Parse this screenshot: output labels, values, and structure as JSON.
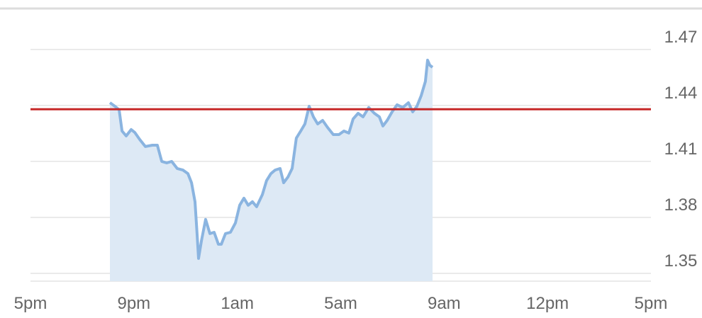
{
  "chart_data": {
    "type": "area",
    "x": [
      0.768,
      0.816,
      0.857,
      0.885,
      0.926,
      0.974,
      1.008,
      1.056,
      1.111,
      1.179,
      1.227,
      1.269,
      1.317,
      1.365,
      1.419,
      1.474,
      1.522,
      1.557,
      1.591,
      1.611,
      1.625,
      1.653,
      1.694,
      1.735,
      1.776,
      1.817,
      1.845,
      1.886,
      1.934,
      1.982,
      2.023,
      2.064,
      2.105,
      2.146,
      2.187,
      2.242,
      2.283,
      2.325,
      2.366,
      2.414,
      2.448,
      2.489,
      2.53,
      2.571,
      2.613,
      2.654,
      2.695,
      2.736,
      2.777,
      2.825,
      2.873,
      2.928,
      2.983,
      3.031,
      3.079,
      3.12,
      3.168,
      3.216,
      3.271,
      3.326,
      3.374,
      3.408,
      3.449,
      3.497,
      3.545,
      3.6,
      3.655,
      3.696,
      3.737,
      3.778,
      3.819,
      3.84,
      3.861,
      3.888
    ],
    "series": [
      {
        "color": "#8ab4e0",
        "fill": "#dde9f5",
        "values": [
          1.4415,
          1.4396,
          1.4377,
          1.4263,
          1.4237,
          1.4271,
          1.4256,
          1.4218,
          1.418,
          1.4187,
          1.4187,
          1.41,
          1.4092,
          1.41,
          1.4062,
          1.4054,
          1.4035,
          1.3986,
          1.3884,
          1.3713,
          1.358,
          1.3675,
          1.3789,
          1.3713,
          1.372,
          1.3656,
          1.3656,
          1.3713,
          1.372,
          1.377,
          1.3865,
          1.3903,
          1.3865,
          1.3884,
          1.3857,
          1.3922,
          1.3997,
          1.4035,
          1.4054,
          1.4062,
          1.3986,
          1.4016,
          1.4062,
          1.4225,
          1.4263,
          1.4301,
          1.4396,
          1.4339,
          1.4301,
          1.432,
          1.4282,
          1.4244,
          1.4244,
          1.4263,
          1.4252,
          1.4328,
          1.4358,
          1.4339,
          1.4389,
          1.4358,
          1.4339,
          1.429,
          1.432,
          1.4366,
          1.4404,
          1.4389,
          1.4415,
          1.4366,
          1.4396,
          1.4453,
          1.4529,
          1.4643,
          1.4616,
          1.4605
        ]
      }
    ],
    "reference_line": {
      "value": 1.438,
      "color": "#c62828"
    },
    "xlim": [
      0,
      6
    ],
    "xticks": [
      {
        "value": 0,
        "label": "5pm"
      },
      {
        "value": 1,
        "label": "9pm"
      },
      {
        "value": 2,
        "label": "1am"
      },
      {
        "value": 3,
        "label": "5am"
      },
      {
        "value": 4,
        "label": "9am"
      },
      {
        "value": 5,
        "label": "12pm"
      },
      {
        "value": 6,
        "label": "5pm"
      }
    ],
    "ylim": [
      1.3458,
      1.492
    ],
    "yticks": [
      1.35,
      1.38,
      1.41,
      1.44,
      1.47
    ],
    "grid": true
  }
}
